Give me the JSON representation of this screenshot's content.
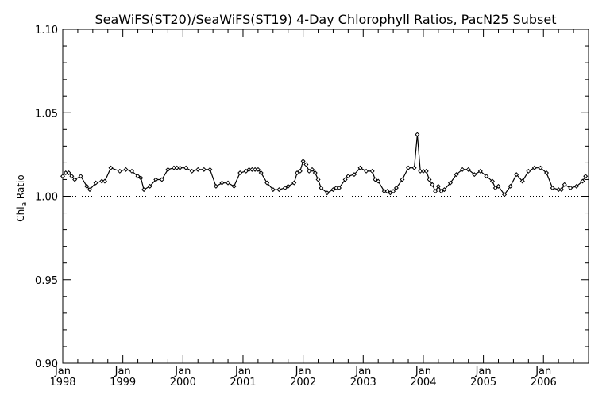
{
  "chart_data": {
    "type": "line",
    "title": "SeaWiFS(ST20)/SeaWiFS(ST19) 4-Day Chlorophyll Ratios, PacN25 Subset",
    "ylabel": "Chl",
    "ylabel_subscript": "a",
    "ylabel_suffix": " Ratio",
    "xlim": [
      1998.0,
      2006.75
    ],
    "ylim": [
      0.9,
      1.1
    ],
    "yticks": [
      "0.90",
      "0.95",
      "1.00",
      "1.05",
      "1.10"
    ],
    "x_month_label": "Jan",
    "xtick_years": [
      "1998",
      "1999",
      "2000",
      "2001",
      "2002",
      "2003",
      "2004",
      "2005",
      "2006"
    ],
    "reference_line": 1.0,
    "grid": false,
    "series": [
      {
        "x": [
          1998.0,
          1998.05,
          1998.1,
          1998.15,
          1998.2,
          1998.3,
          1998.4,
          1998.45,
          1998.55,
          1998.65,
          1998.7,
          1998.8,
          1998.95,
          1999.05,
          1999.15,
          1999.25,
          1999.3,
          1999.35,
          1999.45,
          1999.55,
          1999.65,
          1999.75,
          1999.85,
          1999.9,
          1999.95,
          2000.05,
          2000.15,
          2000.25,
          2000.35,
          2000.45,
          2000.55,
          2000.65,
          2000.75,
          2000.85,
          2000.95,
          2001.05,
          2001.1,
          2001.15,
          2001.2,
          2001.25,
          2001.3,
          2001.4,
          2001.5,
          2001.6,
          2001.7,
          2001.75,
          2001.85,
          2001.9,
          2001.95,
          2002.0,
          2002.05,
          2002.1,
          2002.15,
          2002.2,
          2002.25,
          2002.3,
          2002.4,
          2002.5,
          2002.55,
          2002.6,
          2002.7,
          2002.75,
          2002.85,
          2002.95,
          2003.05,
          2003.15,
          2003.2,
          2003.25,
          2003.35,
          2003.4,
          2003.45,
          2003.5,
          2003.55,
          2003.65,
          2003.75,
          2003.85,
          2003.9,
          2003.95,
          2004.0,
          2004.05,
          2004.1,
          2004.15,
          2004.2,
          2004.25,
          2004.3,
          2004.35,
          2004.45,
          2004.55,
          2004.65,
          2004.75,
          2004.85,
          2004.95,
          2005.05,
          2005.15,
          2005.2,
          2005.25,
          2005.35,
          2005.45,
          2005.55,
          2005.65,
          2005.75,
          2005.85,
          2005.95,
          2006.05,
          2006.15,
          2006.25,
          2006.3,
          2006.35,
          2006.45,
          2006.55,
          2006.65,
          2006.7
        ],
        "y": [
          1.012,
          1.014,
          1.014,
          1.012,
          1.01,
          1.012,
          1.006,
          1.004,
          1.008,
          1.009,
          1.009,
          1.017,
          1.015,
          1.016,
          1.015,
          1.012,
          1.011,
          1.004,
          1.006,
          1.01,
          1.01,
          1.016,
          1.017,
          1.017,
          1.017,
          1.017,
          1.015,
          1.016,
          1.016,
          1.016,
          1.006,
          1.008,
          1.008,
          1.006,
          1.014,
          1.015,
          1.016,
          1.016,
          1.016,
          1.016,
          1.014,
          1.008,
          1.004,
          1.004,
          1.005,
          1.006,
          1.008,
          1.014,
          1.015,
          1.021,
          1.019,
          1.015,
          1.016,
          1.014,
          1.01,
          1.005,
          1.002,
          1.004,
          1.005,
          1.005,
          1.01,
          1.012,
          1.013,
          1.017,
          1.015,
          1.015,
          1.01,
          1.009,
          1.003,
          1.003,
          1.002,
          1.003,
          1.005,
          1.01,
          1.017,
          1.017,
          1.037,
          1.015,
          1.015,
          1.015,
          1.01,
          1.007,
          1.003,
          1.006,
          1.003,
          1.004,
          1.008,
          1.013,
          1.016,
          1.016,
          1.013,
          1.015,
          1.012,
          1.009,
          1.005,
          1.006,
          1.001,
          1.006,
          1.013,
          1.009,
          1.015,
          1.017,
          1.017,
          1.014,
          1.005,
          1.004,
          1.004,
          1.007,
          1.005,
          1.006,
          1.009,
          1.012
        ]
      }
    ]
  }
}
